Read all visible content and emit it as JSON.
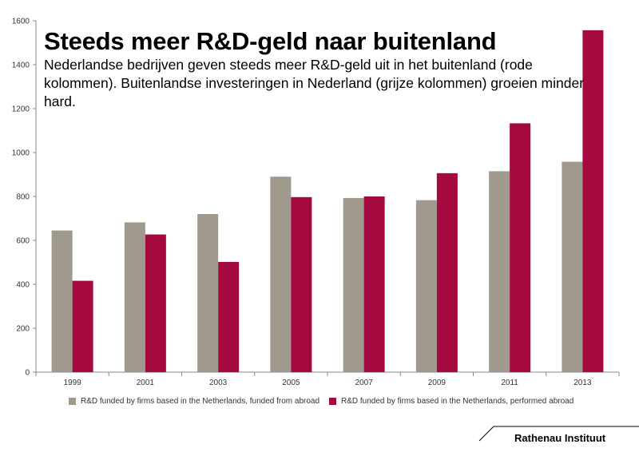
{
  "title": "Steeds meer R&D-geld naar buitenland",
  "subtitle": "Nederlandse bedrijven geven steeds meer R&D-geld uit in het buitenland (rode kolommen). Buitenlandse investeringen in Nederland (grijze kolommen) groeien minder hard.",
  "footer": "Rathenau Instituut",
  "colors": {
    "grey_series": "#a09a8e",
    "red_series": "#a4093f",
    "axis": "#888888"
  },
  "chart_data": {
    "type": "bar",
    "categories": [
      "1999",
      "2001",
      "2003",
      "2005",
      "2007",
      "2009",
      "2011",
      "2013"
    ],
    "series": [
      {
        "name": "R&D funded by firms based in the Netherlands, funded from abroad",
        "values": [
          645,
          682,
          720,
          890,
          793,
          783,
          915,
          958
        ]
      },
      {
        "name": "R&D funded by firms based in the Netherlands, performed abroad",
        "values": [
          416,
          627,
          502,
          797,
          800,
          906,
          1133,
          1557
        ]
      }
    ],
    "ylim": [
      0,
      1600
    ],
    "yticks": [
      0,
      200,
      400,
      600,
      800,
      1000,
      1200,
      1400,
      1600
    ],
    "grid": false,
    "legend_position": "bottom"
  }
}
